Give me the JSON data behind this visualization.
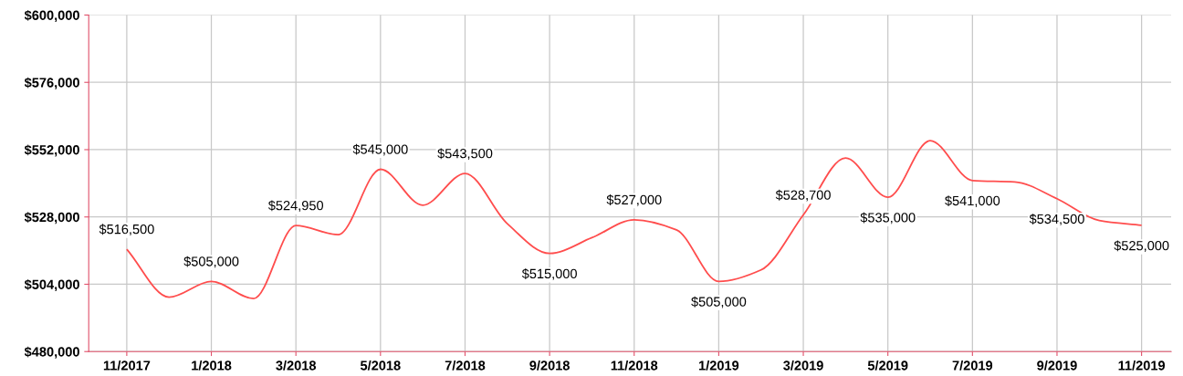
{
  "chart_data": {
    "type": "line",
    "categories": [
      "11/2017",
      null,
      "1/2018",
      null,
      "3/2018",
      null,
      "5/2018",
      null,
      "7/2018",
      null,
      "9/2018",
      null,
      "11/2018",
      null,
      "1/2019",
      null,
      "3/2019",
      null,
      "5/2019",
      null,
      "7/2019",
      null,
      "9/2019",
      null,
      "11/2019"
    ],
    "series": [
      {
        "color": "#ff4d4d",
        "values": [
          516500,
          499400,
          505000,
          498900,
          524950,
          521700,
          545000,
          532200,
          543500,
          525600,
          515000,
          520600,
          527000,
          523400,
          505000,
          509100,
          528700,
          549000,
          535000,
          555200,
          541000,
          540500,
          534500,
          526700,
          525000
        ],
        "value_labels": [
          "$516,500",
          null,
          "$505,000",
          null,
          "$524,950",
          null,
          "$545,000",
          null,
          "$543,500",
          null,
          "$515,000",
          null,
          "$527,000",
          null,
          "$505,000",
          null,
          "$528,700",
          null,
          "$535,000",
          null,
          "$541,000",
          null,
          "$534,500",
          null,
          "$525,000"
        ]
      }
    ],
    "ylim": [
      480000,
      600000
    ],
    "yticks": [
      {
        "value": 480000,
        "label": "$480,000"
      },
      {
        "value": 504000,
        "label": "$504,000"
      },
      {
        "value": 528000,
        "label": "$528,000"
      },
      {
        "value": 552000,
        "label": "$552,000"
      },
      {
        "value": 576000,
        "label": "$576,000"
      },
      {
        "value": 600000,
        "label": "$600,000"
      }
    ],
    "grid": true,
    "marker": "none",
    "line_style": "solid"
  }
}
